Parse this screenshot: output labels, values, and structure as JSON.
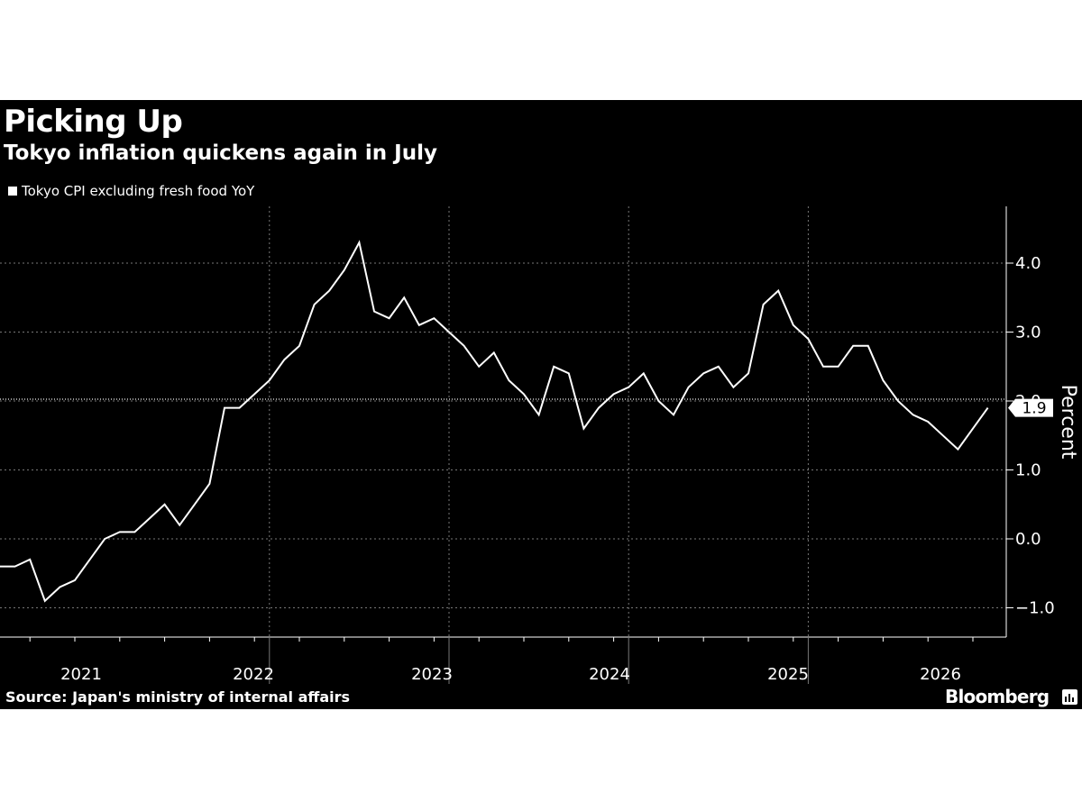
{
  "title": "Picking Up",
  "subtitle": "Tokyo inflation quickens again in July",
  "source": "Source: Japan's ministry of internal affairs",
  "brand": "Bloomberg",
  "brand_icon": "bloomberg-chart-icon",
  "colors": {
    "background": "#000000",
    "line": "#ffffff",
    "grid": "#777777"
  },
  "chart_data": {
    "type": "line",
    "title": "Picking Up",
    "subtitle": "Tokyo inflation quickens again in July",
    "ylabel": "Percent",
    "xlabel": "",
    "ylim": [
      -1.4,
      4.8
    ],
    "yticks": [
      -1.0,
      0.0,
      1.0,
      2.0,
      3.0,
      4.0
    ],
    "ytick_labels": [
      "−1.0",
      "0.0",
      "1.0",
      "2.0",
      "3.0",
      "4.0"
    ],
    "year_labels": [
      "2021",
      "2022",
      "2023",
      "2024",
      "2025",
      "2026"
    ],
    "grid": true,
    "legend_position": "top-left",
    "last_value_label": "1.9",
    "x_start": "2020-07",
    "series": [
      {
        "name": "Tokyo CPI excluding fresh food YoY",
        "values": [
          -0.4,
          -0.4,
          -0.3,
          -0.9,
          -0.7,
          -0.6,
          -0.3,
          0.0,
          0.1,
          0.1,
          0.3,
          0.5,
          0.2,
          0.5,
          0.8,
          1.9,
          1.9,
          2.1,
          2.3,
          2.6,
          2.8,
          3.4,
          3.6,
          3.9,
          4.3,
          3.3,
          3.2,
          3.5,
          3.1,
          3.2,
          3.0,
          2.8,
          2.5,
          2.7,
          2.3,
          2.1,
          1.8,
          2.5,
          2.4,
          1.6,
          1.9,
          2.1,
          2.2,
          2.4,
          2.0,
          1.8,
          2.2,
          2.4,
          2.5,
          2.2,
          2.4,
          3.4,
          3.6,
          3.1,
          2.9,
          2.5,
          2.5,
          2.8,
          2.8,
          2.3,
          2.0,
          1.8,
          1.7,
          1.5,
          1.3,
          1.6,
          1.9
        ]
      }
    ]
  }
}
